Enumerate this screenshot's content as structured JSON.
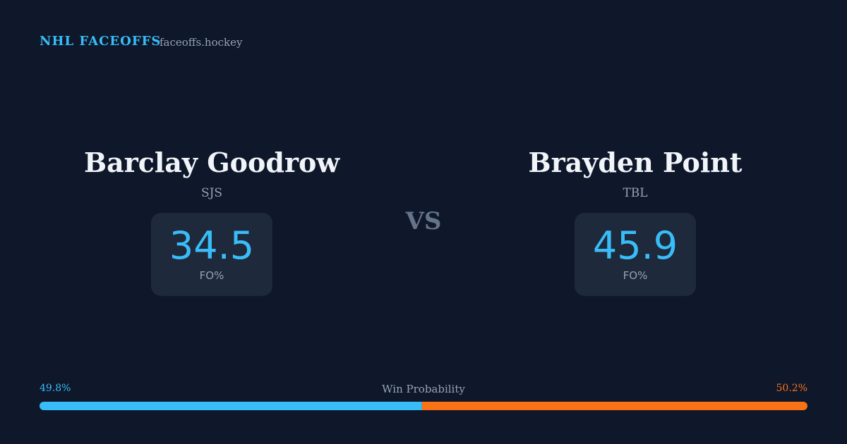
{
  "header": {
    "brand": "NHL FACEOFFS",
    "site": "faceoffs.hockey"
  },
  "players": [
    {
      "name": "Barclay Goodrow",
      "team": "SJS",
      "stat": 34.5,
      "stat_label": "FO%"
    },
    {
      "name": "Brayden Point",
      "team": "TBL",
      "stat": 45.9,
      "stat_label": "FO%"
    }
  ],
  "versus": "VS",
  "win_probability": {
    "label": "Win Probability",
    "left": {
      "value": 49.8,
      "label": "49.8%",
      "color": "#38bdf8"
    },
    "right": {
      "value": 50.2,
      "label": "50.2%",
      "color": "#f97316"
    }
  }
}
